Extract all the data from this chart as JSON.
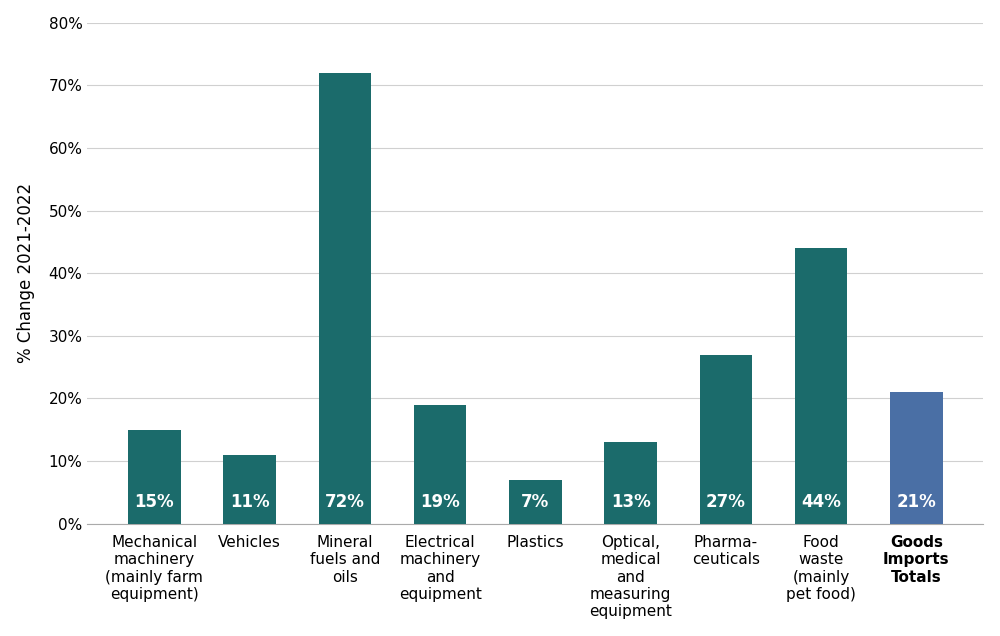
{
  "categories": [
    "Mechanical\nmachinery\n(mainly farm\nequipment)",
    "Vehicles",
    "Mineral\nfuels and\noils",
    "Electrical\nmachinery\nand\nequipment",
    "Plastics",
    "Optical,\nmedical\nand\nmeasuring\nequipment",
    "Pharma-\nceuticals",
    "Food\nwaste\n(mainly\npet food)",
    "Goods\nImports\nTotals"
  ],
  "values": [
    15,
    11,
    72,
    19,
    7,
    13,
    27,
    44,
    21
  ],
  "teal_color": "#1b6b6b",
  "blue_color": "#4a6fa5",
  "ylabel": "% Change 2021-2022",
  "ylim": [
    0,
    80
  ],
  "yticks": [
    0,
    10,
    20,
    30,
    40,
    50,
    60,
    70,
    80
  ],
  "ytick_labels": [
    "0%",
    "10%",
    "20%",
    "30%",
    "40%",
    "50%",
    "60%",
    "70%",
    "80%"
  ],
  "tick_fontsize": 11,
  "bar_label_fontsize": 12,
  "ylabel_fontsize": 12,
  "background_color": "#ffffff",
  "grid_color": "#d0d0d0",
  "bar_width": 0.55
}
